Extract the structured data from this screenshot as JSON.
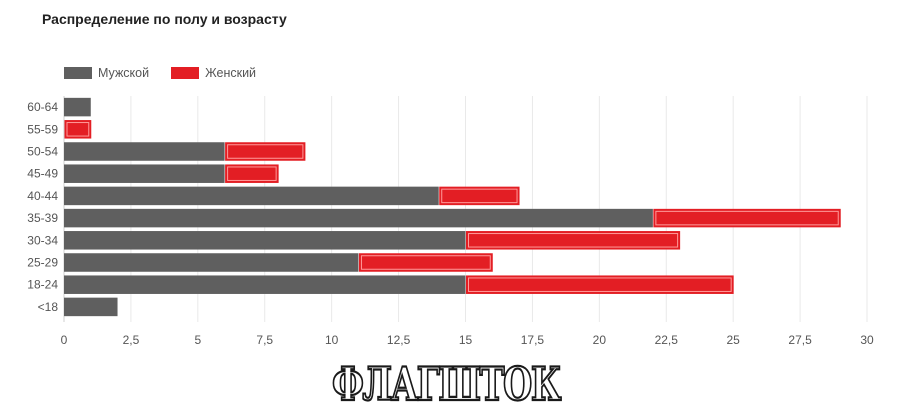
{
  "title": "Распределение по полу и возрасту",
  "colors": {
    "male": "#5f5f5f",
    "female": "#e31e24",
    "grid": "#e9e9e9"
  },
  "legend": {
    "male_label": "Мужской",
    "female_label": "Женский"
  },
  "watermark_text": "ФЛАГШТОК",
  "chart_data": {
    "type": "bar",
    "orientation": "horizontal",
    "stacked": true,
    "title": "Распределение по полу и возрасту",
    "categories": [
      "60-64",
      "55-59",
      "50-54",
      "45-49",
      "40-44",
      "35-39",
      "30-34",
      "25-29",
      "18-24",
      "<18"
    ],
    "series": [
      {
        "name": "Мужской",
        "values": [
          1,
          0,
          6,
          6,
          14,
          22,
          15,
          11,
          15,
          2
        ]
      },
      {
        "name": "Женский",
        "values": [
          0,
          1,
          3,
          2,
          3,
          7,
          8,
          5,
          10,
          0
        ]
      }
    ],
    "xlim": [
      0,
      30
    ],
    "xticks": [
      "0",
      "2,5",
      "5",
      "7,5",
      "10",
      "12,5",
      "15",
      "17,5",
      "20",
      "22,5",
      "25",
      "27,5",
      "30"
    ],
    "grid": true,
    "legend_position": "top-left"
  }
}
